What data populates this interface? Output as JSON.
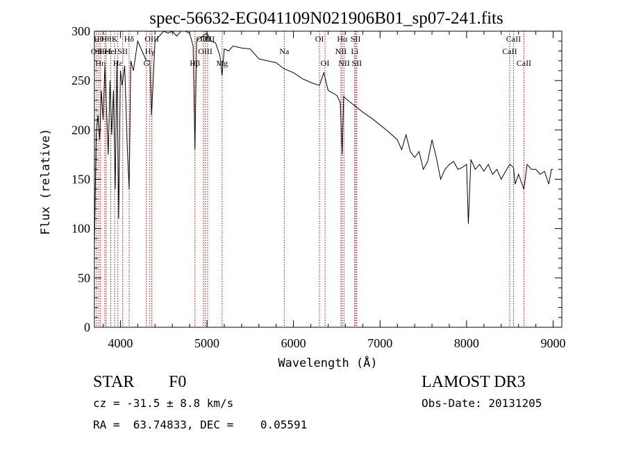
{
  "chart_data": {
    "type": "line",
    "title": "spec-56632-EG041109N021906B01_sp07-241.fits",
    "xlabel": "Wavelength (Å)",
    "ylabel": "Flux (relative)",
    "xlim": [
      3700,
      9100
    ],
    "ylim": [
      0,
      300
    ],
    "xticks": [
      4000,
      5000,
      6000,
      7000,
      8000,
      9000
    ],
    "yticks": [
      0,
      50,
      100,
      150,
      200,
      250,
      300
    ],
    "grid": false,
    "line_color": "#000000",
    "marker_color": "#b00000",
    "series": [
      {
        "x": [
          3700,
          3720,
          3740,
          3760,
          3780,
          3800,
          3820,
          3840,
          3860,
          3880,
          3900,
          3920,
          3940,
          3960,
          3980,
          4000,
          4020,
          4050,
          4080,
          4101,
          4120,
          4150,
          4200,
          4250,
          4300,
          4340,
          4360,
          4400,
          4450,
          4500,
          4550,
          4600,
          4650,
          4700,
          4750,
          4800,
          4840,
          4861,
          4880,
          4900,
          4950,
          5000,
          5050,
          5100,
          5150,
          5175,
          5200,
          5250,
          5300,
          5400,
          5500,
          5600,
          5700,
          5800,
          5890,
          6000,
          6100,
          6200,
          6300,
          6350,
          6400,
          6500,
          6540,
          6563,
          6580,
          6600,
          6700,
          6800,
          6900,
          7000,
          7100,
          7200,
          7250,
          7300,
          7350,
          7400,
          7450,
          7500,
          7550,
          7600,
          7650,
          7700,
          7750,
          7800,
          7850,
          7900,
          7950,
          8000,
          8020,
          8050,
          8100,
          8150,
          8200,
          8250,
          8300,
          8350,
          8400,
          8450,
          8498,
          8542,
          8560,
          8600,
          8662,
          8700,
          8750,
          8800,
          8850,
          8900,
          8950,
          8980,
          9000
        ],
        "y": [
          80,
          195,
          215,
          190,
          240,
          210,
          265,
          220,
          175,
          250,
          195,
          240,
          140,
          270,
          110,
          260,
          245,
          265,
          180,
          140,
          270,
          260,
          290,
          280,
          270,
          270,
          215,
          290,
          295,
          300,
          298,
          300,
          295,
          302,
          300,
          298,
          285,
          180,
          290,
          292,
          295,
          298,
          290,
          288,
          275,
          255,
          282,
          280,
          285,
          283,
          282,
          272,
          270,
          268,
          262,
          258,
          252,
          248,
          245,
          258,
          240,
          235,
          228,
          175,
          234,
          232,
          225,
          218,
          212,
          205,
          198,
          190,
          180,
          195,
          178,
          172,
          178,
          160,
          168,
          190,
          172,
          150,
          160,
          165,
          168,
          160,
          162,
          165,
          105,
          170,
          160,
          165,
          158,
          165,
          155,
          160,
          150,
          158,
          165,
          162,
          145,
          155,
          140,
          165,
          160,
          160,
          155,
          158,
          145,
          160,
          160
        ]
      }
    ],
    "lines": [
      {
        "wl": 3726,
        "label": "OII",
        "row": 1
      },
      {
        "wl": 3750,
        "label": "Hθ",
        "row": 0
      },
      {
        "wl": 3771,
        "label": "Hη",
        "row": 2
      },
      {
        "wl": 3820,
        "label": "HeI",
        "row": 1
      },
      {
        "wl": 3835,
        "label": "Hθ",
        "row": 0
      },
      {
        "wl": 3889,
        "label": "HeI",
        "row": 1
      },
      {
        "wl": 3934,
        "label": "K",
        "row": 0
      },
      {
        "wl": 3970,
        "label": "Hε",
        "row": 2
      },
      {
        "wl": 4026,
        "label": "SII",
        "row": 1
      },
      {
        "wl": 4101,
        "label": "Hδ",
        "row": 0
      },
      {
        "wl": 4300,
        "label": "G",
        "row": 2
      },
      {
        "wl": 4340,
        "label": "Hγ",
        "row": 1
      },
      {
        "wl": 4363,
        "label": "OIII",
        "row": 0
      },
      {
        "wl": 4861,
        "label": "Hβ",
        "row": 2
      },
      {
        "wl": 4959,
        "label": "OIII",
        "row": 0
      },
      {
        "wl": 4980,
        "label": "OIII",
        "row": 1
      },
      {
        "wl": 5007,
        "label": "OIII",
        "row": 0
      },
      {
        "wl": 5175,
        "label": "Mg",
        "row": 2
      },
      {
        "wl": 5893,
        "label": "Na",
        "row": 1
      },
      {
        "wl": 6300,
        "label": "OI",
        "row": 0
      },
      {
        "wl": 6364,
        "label": "OI",
        "row": 2
      },
      {
        "wl": 6548,
        "label": "NII",
        "row": 1
      },
      {
        "wl": 6563,
        "label": "Hα",
        "row": 0
      },
      {
        "wl": 6584,
        "label": "NII",
        "row": 2
      },
      {
        "wl": 6707,
        "label": "Li",
        "row": 1
      },
      {
        "wl": 6717,
        "label": "SII",
        "row": 0
      },
      {
        "wl": 6731,
        "label": "SII",
        "row": 2
      },
      {
        "wl": 8498,
        "label": "CaII",
        "row": 1
      },
      {
        "wl": 8542,
        "label": "CaII",
        "row": 0
      },
      {
        "wl": 8662,
        "label": "CaII",
        "row": 2
      }
    ]
  },
  "footer": {
    "class_label": "STAR",
    "subclass": "F0",
    "survey": "LAMOST DR3",
    "cz": "cz = -31.5 ± 8.8 km/s",
    "obs_date": "Obs-Date: 20131205",
    "coords": "RA =  63.74833, DEC =    0.05591"
  }
}
